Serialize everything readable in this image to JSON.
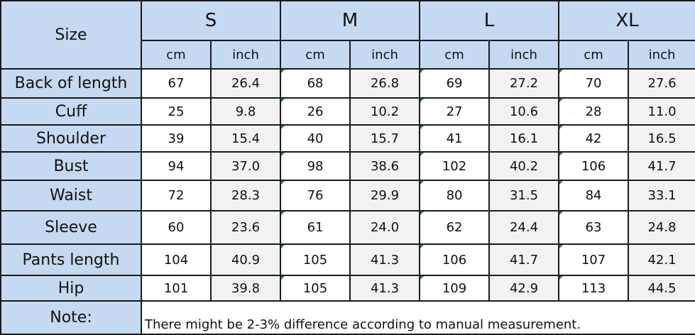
{
  "header": {
    "size_label": "Size",
    "sizes": [
      "S",
      "M",
      "L",
      "XL"
    ],
    "units": [
      "cm",
      "inch"
    ]
  },
  "rows": [
    {
      "label": "Back of length",
      "values": [
        "67",
        "26.4",
        "68",
        "26.8",
        "69",
        "27.2",
        "70",
        "27.6"
      ]
    },
    {
      "label": "Cuff",
      "values": [
        "25",
        "9.8",
        "26",
        "10.2",
        "27",
        "10.6",
        "28",
        "11.0"
      ]
    },
    {
      "label": "Shoulder",
      "values": [
        "39",
        "15.4",
        "40",
        "15.7",
        "41",
        "16.1",
        "42",
        "16.5"
      ]
    },
    {
      "label": "Bust",
      "values": [
        "94",
        "37.0",
        "98",
        "38.6",
        "102",
        "40.2",
        "106",
        "41.7"
      ]
    },
    {
      "label": "Waist",
      "values": [
        "72",
        "28.3",
        "76",
        "29.9",
        "80",
        "31.5",
        "84",
        "33.1"
      ]
    },
    {
      "label": "Sleeve",
      "values": [
        "60",
        "23.6",
        "61",
        "24.0",
        "62",
        "24.4",
        "63",
        "24.8"
      ]
    },
    {
      "label": "Pants length",
      "values": [
        "104",
        "40.9",
        "105",
        "41.3",
        "106",
        "41.7",
        "107",
        "42.1"
      ]
    },
    {
      "label": "Hip",
      "values": [
        "101",
        "39.8",
        "105",
        "41.3",
        "109",
        "42.9",
        "113",
        "44.5"
      ]
    }
  ],
  "note": {
    "label": "Note:",
    "text": "There might be 2-3% difference according to manual measurement."
  },
  "colors": {
    "header_blue": "#c5d9f1",
    "cell_grey": "#f2f2f2",
    "mark_green": "#1f8c2a"
  }
}
